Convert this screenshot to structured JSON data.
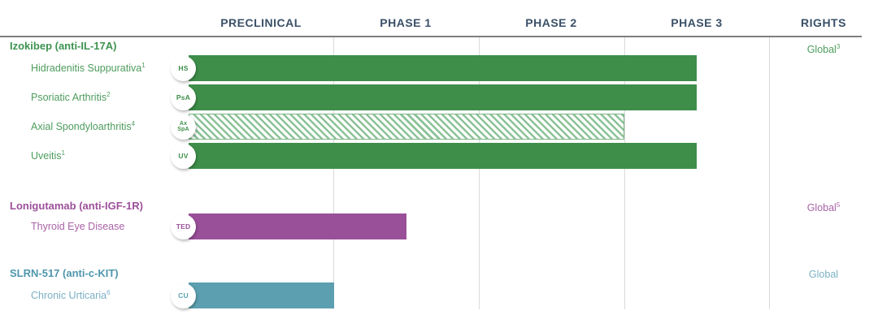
{
  "chart_data": {
    "type": "bar",
    "chart_kind": "drug-development-pipeline-gantt",
    "columns": [
      "PRECLINICAL",
      "PHASE 1",
      "PHASE 2",
      "PHASE 3",
      "RIGHTS"
    ],
    "phase_scale_note": "bar_end_phase units: 1 = end of Preclinical, 2 = end of Phase 1, 3 = end of Phase 2, 4 = end of Phase 3",
    "programs": [
      {
        "name": "Izokibep (anti-IL-17A)",
        "color": "#3e8e4a",
        "header_color": "#3d9350",
        "label_color": "#4d9c5d",
        "hatch_stripe": "#8cc297",
        "rights": {
          "label": "Global",
          "sup": "3"
        },
        "indications": [
          {
            "label": "Hidradenitis Suppurativa",
            "sup": "1",
            "badge": "HS",
            "bar_end_phase": 3.5,
            "hatched": false
          },
          {
            "label": "Psoriatic Arthritis",
            "sup": "2",
            "badge": "PsA",
            "bar_end_phase": 3.5,
            "hatched": false
          },
          {
            "label": "Axial Spondyloarthritis",
            "sup": "4",
            "badge": "Ax SpA",
            "badge_lines": [
              "Ax",
              "SpA"
            ],
            "bar_end_phase": 3.0,
            "hatched": true
          },
          {
            "label": "Uveitis",
            "sup": "1",
            "badge": "UV",
            "bar_end_phase": 3.5,
            "hatched": false
          }
        ]
      },
      {
        "name": "Lonigutamab (anti-IGF-1R)",
        "color": "#9a4f99",
        "header_color": "#9c4f9a",
        "label_color": "#a963a7",
        "hatch_stripe": "#cfa3ce",
        "rights": {
          "label": "Global",
          "sup": "5"
        },
        "indications": [
          {
            "label": "Thyroid Eye Disease",
            "sup": "",
            "badge": "TED",
            "bar_end_phase": 1.5,
            "hatched": false
          }
        ]
      },
      {
        "name": "SLRN-517 (anti-c-KIT)",
        "color": "#5b9fb0",
        "header_color": "#4f96ad",
        "label_color": "#7ab0c4",
        "hatch_stripe": "#aed0da",
        "rights": {
          "label": "Global",
          "sup": ""
        },
        "indications": [
          {
            "label": "Chronic Urticaria",
            "sup": "6",
            "badge": "CU",
            "bar_end_phase": 1.0,
            "hatched": false
          }
        ]
      }
    ],
    "layout_hints": {
      "header_text_color": "#3a5068",
      "gridline_color": "#d9d9d9",
      "header_rule_color": "#7f7f7f",
      "background": "#ffffff"
    }
  }
}
